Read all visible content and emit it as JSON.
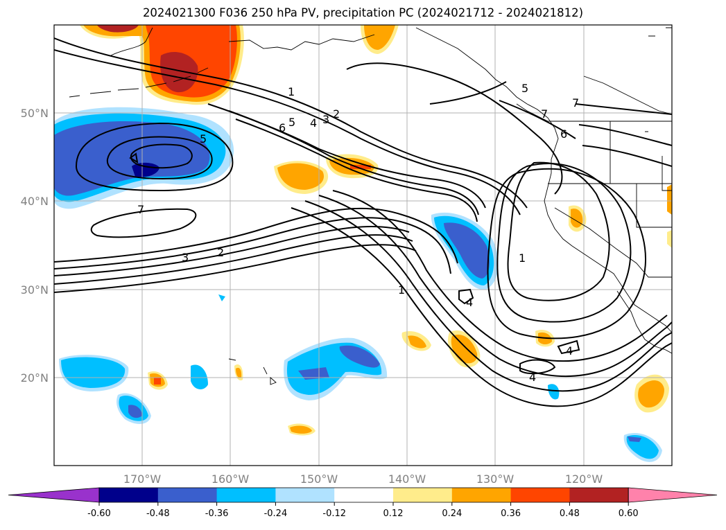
{
  "title": "2024021300 F036 250 hPa PV, precipitation PC (2024021712 - 2024021812)",
  "latitude_labels": [
    "50°N",
    "40°N",
    "30°N",
    "20°N"
  ],
  "longitude_labels": [
    "170°W",
    "160°W",
    "150°W",
    "140°W",
    "130°W",
    "120°W"
  ],
  "colorbar": {
    "tick_labels": [
      "-0.60",
      "-0.48",
      "-0.36",
      "-0.24",
      "-0.12",
      "0.12",
      "0.24",
      "0.36",
      "0.48",
      "0.60"
    ],
    "colors": [
      "#9932CC",
      "#00008B",
      "#3A5FCD",
      "#00BFFF",
      "#B0E2FF",
      "#FFFFFF",
      "#FFEC8B",
      "#FFA500",
      "#FF4500",
      "#B22222",
      "#FF82AB"
    ]
  },
  "pv_contour_labels": [
    "1",
    "2",
    "3",
    "4",
    "5",
    "6",
    "7",
    "5",
    "7",
    "3",
    "2",
    "1",
    "1",
    "4",
    "4",
    "4",
    "5",
    "7",
    "6"
  ],
  "map": {
    "extent_lon": [
      -180,
      -110
    ],
    "extent_lat": [
      10,
      60
    ],
    "gridlines": true,
    "field": "250 hPa PV contours with precipitation PC shading"
  }
}
